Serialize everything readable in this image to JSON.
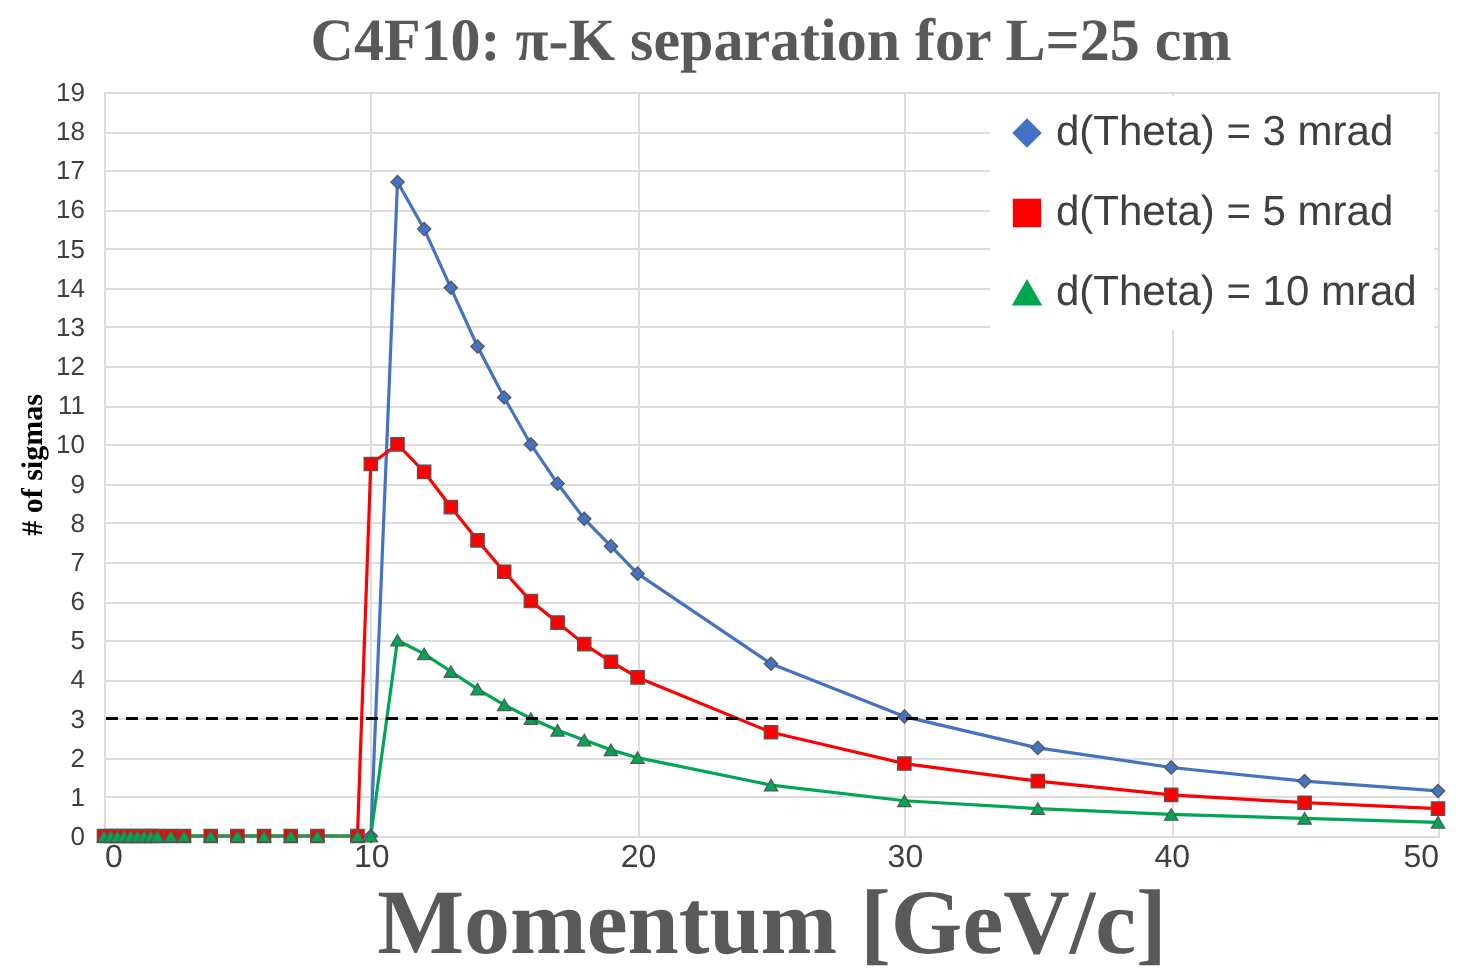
{
  "chart_data": {
    "type": "line",
    "title": "C4F10: π-K separation for L=25 cm",
    "xlabel": "Momentum [GeV/c]",
    "ylabel": "# of sigmas",
    "xlim": [
      0,
      50
    ],
    "xticks": [
      0,
      10,
      20,
      30,
      40,
      50
    ],
    "ylim": [
      0,
      19
    ],
    "yticks": [
      0,
      1,
      2,
      3,
      4,
      5,
      6,
      7,
      8,
      9,
      10,
      11,
      12,
      13,
      14,
      15,
      16,
      17,
      18,
      19
    ],
    "grid": true,
    "legend": "top right",
    "line_style": "solid",
    "ref_lines": [
      {
        "axis": "y",
        "value": 3,
        "color": "#000000",
        "line_style": "dashed"
      }
    ],
    "series": [
      {
        "name": "d(Theta) = 3 mrad",
        "color": "#4472c4",
        "marker": "diamond",
        "x": [
          10,
          11,
          12,
          13,
          14,
          15,
          16,
          17,
          18,
          19,
          20,
          25,
          30,
          35,
          40,
          45,
          50
        ],
        "values": [
          0,
          16.7,
          15.5,
          14.0,
          12.5,
          11.2,
          10.0,
          9.0,
          8.1,
          7.4,
          6.7,
          4.4,
          3.05,
          2.25,
          1.75,
          1.4,
          1.15
        ]
      },
      {
        "name": "d(Theta) = 5 mrad",
        "color": "#ff0000",
        "marker": "square",
        "x": [
          0,
          0.25,
          0.5,
          0.75,
          1,
          1.25,
          1.5,
          1.75,
          2,
          2.5,
          3,
          4,
          5,
          6,
          7,
          8,
          9.5,
          10,
          11,
          12,
          13,
          14,
          15,
          16,
          17,
          18,
          19,
          20,
          25,
          30,
          35,
          40,
          45,
          50
        ],
        "values": [
          0,
          0,
          0,
          0,
          0,
          0,
          0,
          0,
          0,
          0,
          0,
          0,
          0,
          0,
          0,
          0,
          0,
          9.5,
          10.0,
          9.3,
          8.4,
          7.55,
          6.75,
          6.0,
          5.45,
          4.9,
          4.45,
          4.05,
          2.65,
          1.85,
          1.4,
          1.05,
          0.85,
          0.7
        ]
      },
      {
        "name": "d(Theta) = 10 mrad",
        "color": "#00a651",
        "marker": "triangle",
        "x": [
          0,
          0.25,
          0.5,
          0.75,
          1,
          1.25,
          1.5,
          1.75,
          2,
          2.5,
          3,
          4,
          5,
          6,
          7,
          8,
          9.5,
          10,
          11,
          12,
          13,
          14,
          15,
          16,
          17,
          18,
          19,
          20,
          25,
          30,
          35,
          40,
          45,
          50
        ],
        "values": [
          0,
          0,
          0,
          0,
          0,
          0,
          0,
          0,
          0,
          0,
          0,
          0,
          0,
          0,
          0,
          0,
          0,
          0,
          5.0,
          4.65,
          4.2,
          3.75,
          3.35,
          3.0,
          2.7,
          2.45,
          2.2,
          2.0,
          1.3,
          0.9,
          0.7,
          0.55,
          0.45,
          0.35
        ]
      }
    ]
  }
}
